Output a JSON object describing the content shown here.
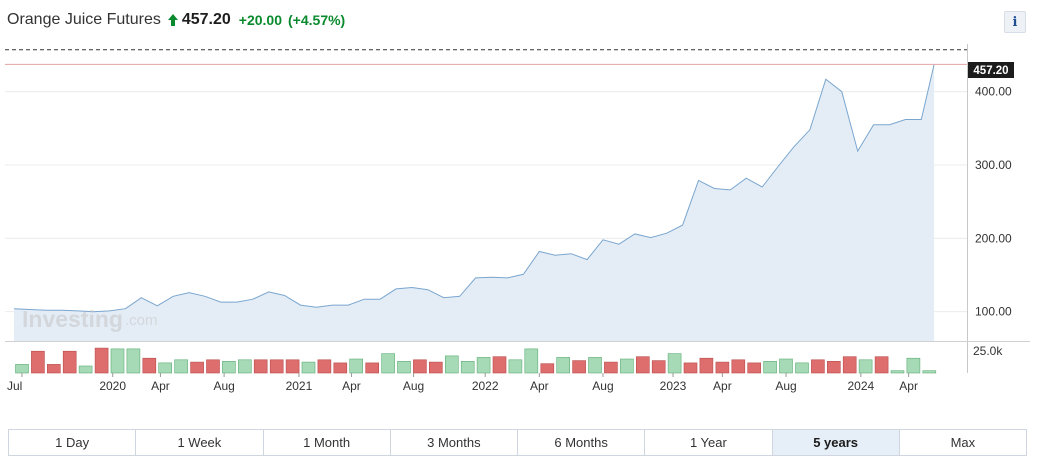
{
  "header": {
    "title": "Orange Juice Futures",
    "price": "457.20",
    "change": "+20.00",
    "change_percent": "(+4.57%)",
    "info_label": "i"
  },
  "watermark": {
    "brand": "Investing",
    "suffix": ".com"
  },
  "price_label": "457.20",
  "volume_label": "25.0k",
  "colors": {
    "line": "#7aa6cf",
    "area": "#e4edf6",
    "up_volume": "#a6d9b5",
    "up_volume_border": "#5fae77",
    "down_volume": "#de6e6e",
    "down_volume_border": "#b94c4c",
    "prev_close_line": "#e3a4a4",
    "positive": "#0a8a2e"
  },
  "tabs": [
    {
      "label": "1 Day",
      "active": false
    },
    {
      "label": "1 Week",
      "active": false
    },
    {
      "label": "1 Month",
      "active": false
    },
    {
      "label": "3 Months",
      "active": false
    },
    {
      "label": "6 Months",
      "active": false
    },
    {
      "label": "1 Year",
      "active": false
    },
    {
      "label": "5 years",
      "active": true
    },
    {
      "label": "Max",
      "active": false
    }
  ],
  "chart_data": {
    "type": "area",
    "title": "Orange Juice Futures",
    "yticks": [
      100,
      200,
      300,
      400
    ],
    "ytick_labels": [
      "100.00",
      "200.00",
      "300.00",
      "400.00"
    ],
    "ylim": [
      60,
      465
    ],
    "xlim": [
      0,
      58.8
    ],
    "x_ticks": [
      {
        "x": 0.5,
        "label": "Jul"
      },
      {
        "x": 6.2,
        "label": "2020"
      },
      {
        "x": 9.2,
        "label": "Apr"
      },
      {
        "x": 13.2,
        "label": "Aug"
      },
      {
        "x": 17.9,
        "label": "2021"
      },
      {
        "x": 21.2,
        "label": "Apr"
      },
      {
        "x": 25.1,
        "label": "Aug"
      },
      {
        "x": 29.6,
        "label": "2022"
      },
      {
        "x": 33.0,
        "label": "Apr"
      },
      {
        "x": 37.0,
        "label": "Aug"
      },
      {
        "x": 41.4,
        "label": "2023"
      },
      {
        "x": 44.5,
        "label": "Apr"
      },
      {
        "x": 48.5,
        "label": "Aug"
      },
      {
        "x": 53.2,
        "label": "2024"
      },
      {
        "x": 56.2,
        "label": "Apr"
      }
    ],
    "series": [
      {
        "x": [
          0,
          1,
          2,
          3,
          4,
          5,
          6,
          7,
          8,
          9,
          10,
          11,
          12,
          13,
          14,
          15,
          16,
          17,
          18,
          19,
          20,
          21,
          22,
          23,
          24,
          25,
          26,
          27,
          28,
          29,
          30,
          31,
          32,
          33,
          34,
          35,
          36,
          37,
          38,
          39,
          40,
          41,
          42,
          43,
          44,
          45,
          46,
          47,
          48,
          49,
          50,
          51,
          52,
          53,
          54,
          55,
          56,
          57,
          57.8
        ],
        "values": [
          104,
          103,
          102,
          102,
          101,
          100,
          101,
          104,
          119,
          108,
          121,
          126,
          121,
          113,
          113,
          117,
          127,
          122,
          109,
          106,
          109,
          109,
          117,
          117,
          131,
          133,
          130,
          119,
          121,
          146,
          147,
          146,
          151,
          182,
          177,
          179,
          171,
          198,
          192,
          206,
          201,
          207,
          218,
          279,
          268,
          266,
          282,
          270,
          298,
          325,
          348,
          417,
          400,
          319,
          355,
          355,
          362,
          362,
          437
        ]
      }
    ],
    "current_value": 457.2,
    "previous_close": 437.2,
    "volume": {
      "ylim": [
        0,
        36
      ],
      "values": [
        11,
        28,
        11,
        28,
        9,
        32,
        31,
        31,
        19,
        13,
        17,
        14,
        17,
        15,
        17,
        17,
        17,
        17,
        14,
        17,
        13,
        18,
        13,
        25,
        15,
        17,
        14,
        22,
        15,
        20,
        21,
        17,
        31,
        12,
        20,
        16,
        20,
        14,
        18,
        21,
        16,
        25,
        13,
        19,
        14,
        17,
        13,
        15,
        18,
        13,
        17,
        15,
        21,
        17,
        21,
        3,
        19,
        3
      ],
      "up": [
        true,
        false,
        false,
        false,
        true,
        false,
        true,
        true,
        false,
        true,
        true,
        false,
        false,
        true,
        true,
        false,
        false,
        false,
        true,
        false,
        false,
        true,
        false,
        true,
        true,
        false,
        false,
        true,
        true,
        true,
        false,
        true,
        true,
        false,
        true,
        false,
        true,
        false,
        true,
        false,
        false,
        true,
        false,
        false,
        false,
        false,
        false,
        true,
        true,
        true,
        false,
        false,
        false,
        true,
        false,
        true,
        true,
        true
      ]
    }
  }
}
